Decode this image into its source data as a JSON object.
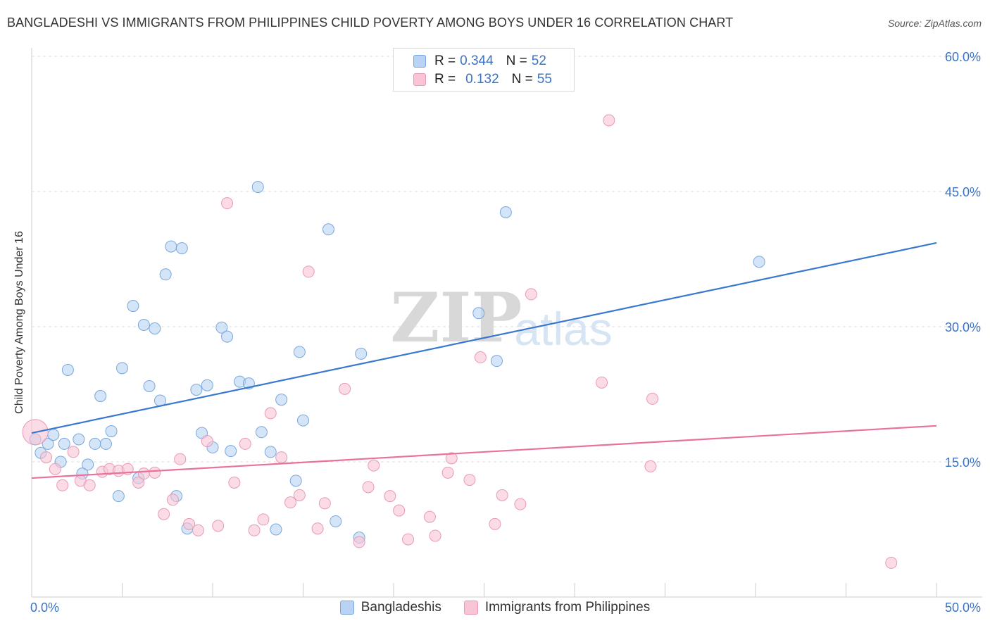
{
  "header": {
    "title": "BANGLADESHI VS IMMIGRANTS FROM PHILIPPINES CHILD POVERTY AMONG BOYS UNDER 16 CORRELATION CHART",
    "source": "Source: ZipAtlas.com"
  },
  "watermark": {
    "zip": "ZIP",
    "atlas": "atlas"
  },
  "legend": {
    "rows": [
      {
        "r_label": "R =",
        "r_value": "0.344",
        "n_label": "N =",
        "n_value": "52"
      },
      {
        "r_label": "R =",
        "r_value": "0.132",
        "n_label": "N =",
        "n_value": "55"
      }
    ]
  },
  "bottom_legend": {
    "items": [
      {
        "label": "Bangladeshis"
      },
      {
        "label": "Immigrants from Philippines"
      }
    ]
  },
  "colors": {
    "blue_fill": "#b8d3f3",
    "blue_stroke": "#7aa6dc",
    "blue_line": "#3a78d0",
    "pink_fill": "#f9c5d6",
    "pink_stroke": "#e89ab4",
    "pink_line": "#e8729b",
    "tick_label": "#3b73c6",
    "grid": "#dddddd"
  },
  "chart_data": {
    "type": "scatter",
    "title": "BANGLADESHI VS IMMIGRANTS FROM PHILIPPINES CHILD POVERTY AMONG BOYS UNDER 16 CORRELATION CHART",
    "xlabel": "",
    "ylabel": "Child Poverty Among Boys Under 16",
    "xlim": [
      0,
      50
    ],
    "ylim": [
      0,
      60
    ],
    "x_tick_labels": [
      "0.0%",
      "50.0%"
    ],
    "y_ticks": [
      15,
      30,
      45,
      60
    ],
    "y_tick_labels": [
      "15.0%",
      "30.0%",
      "45.0%",
      "60.0%"
    ],
    "grid": true,
    "legend_position": "top-center",
    "series": [
      {
        "name": "Bangladeshis",
        "r": 0.344,
        "n": 52,
        "trend": [
          [
            0,
            18.2
          ],
          [
            50,
            39.3
          ]
        ],
        "points": [
          [
            0.2,
            17.5
          ],
          [
            0.5,
            16.0
          ],
          [
            0.9,
            17.0
          ],
          [
            1.2,
            18.0
          ],
          [
            1.6,
            15.0
          ],
          [
            1.8,
            17.0
          ],
          [
            2.0,
            25.2
          ],
          [
            2.6,
            17.5
          ],
          [
            2.8,
            13.7
          ],
          [
            3.1,
            14.7
          ],
          [
            3.5,
            17.0
          ],
          [
            3.8,
            22.3
          ],
          [
            4.1,
            17.0
          ],
          [
            4.4,
            18.4
          ],
          [
            4.8,
            11.2
          ],
          [
            5.0,
            25.4
          ],
          [
            5.6,
            32.3
          ],
          [
            5.9,
            13.2
          ],
          [
            6.2,
            30.2
          ],
          [
            6.5,
            23.4
          ],
          [
            6.8,
            29.8
          ],
          [
            7.1,
            21.8
          ],
          [
            7.4,
            35.8
          ],
          [
            7.7,
            38.9
          ],
          [
            8.0,
            11.2
          ],
          [
            8.3,
            38.7
          ],
          [
            8.6,
            7.6
          ],
          [
            9.1,
            23.0
          ],
          [
            9.4,
            18.2
          ],
          [
            9.7,
            23.5
          ],
          [
            10.0,
            16.6
          ],
          [
            10.5,
            29.9
          ],
          [
            10.8,
            28.9
          ],
          [
            11.0,
            16.2
          ],
          [
            11.5,
            23.9
          ],
          [
            12.0,
            23.7
          ],
          [
            12.5,
            45.5
          ],
          [
            12.7,
            18.3
          ],
          [
            13.2,
            16.1
          ],
          [
            13.5,
            7.5
          ],
          [
            13.8,
            21.9
          ],
          [
            14.6,
            12.9
          ],
          [
            15.0,
            19.6
          ],
          [
            14.8,
            27.2
          ],
          [
            16.4,
            40.8
          ],
          [
            16.8,
            8.4
          ],
          [
            18.1,
            6.6
          ],
          [
            18.2,
            27.0
          ],
          [
            24.7,
            31.5
          ],
          [
            25.7,
            26.2
          ],
          [
            26.2,
            42.7
          ],
          [
            40.2,
            37.2
          ]
        ]
      },
      {
        "name": "Immigrants from Philippines",
        "r": 0.132,
        "n": 55,
        "trend": [
          [
            0,
            13.2
          ],
          [
            50,
            19.0
          ]
        ],
        "points": [
          [
            0.2,
            18.3
          ],
          [
            0.8,
            15.5
          ],
          [
            1.3,
            14.2
          ],
          [
            1.7,
            12.4
          ],
          [
            2.3,
            16.1
          ],
          [
            2.7,
            12.9
          ],
          [
            3.2,
            12.4
          ],
          [
            3.9,
            13.9
          ],
          [
            4.3,
            14.2
          ],
          [
            4.8,
            14.0
          ],
          [
            5.3,
            14.2
          ],
          [
            5.9,
            12.7
          ],
          [
            6.2,
            13.7
          ],
          [
            6.8,
            13.8
          ],
          [
            7.3,
            9.2
          ],
          [
            7.8,
            10.8
          ],
          [
            8.2,
            15.3
          ],
          [
            8.7,
            8.1
          ],
          [
            9.2,
            7.4
          ],
          [
            9.7,
            17.3
          ],
          [
            10.3,
            7.9
          ],
          [
            10.8,
            43.7
          ],
          [
            11.2,
            12.7
          ],
          [
            11.8,
            17.0
          ],
          [
            12.3,
            7.4
          ],
          [
            12.8,
            8.6
          ],
          [
            13.2,
            20.4
          ],
          [
            13.8,
            15.5
          ],
          [
            14.3,
            10.5
          ],
          [
            14.8,
            11.3
          ],
          [
            15.3,
            36.1
          ],
          [
            15.8,
            7.6
          ],
          [
            16.2,
            10.4
          ],
          [
            17.3,
            23.1
          ],
          [
            18.1,
            6.1
          ],
          [
            18.6,
            12.2
          ],
          [
            18.9,
            14.6
          ],
          [
            19.8,
            11.2
          ],
          [
            20.3,
            9.6
          ],
          [
            20.8,
            6.4
          ],
          [
            22.0,
            8.9
          ],
          [
            22.3,
            6.8
          ],
          [
            23.0,
            13.8
          ],
          [
            23.2,
            15.4
          ],
          [
            24.2,
            13.0
          ],
          [
            24.8,
            26.6
          ],
          [
            25.6,
            8.1
          ],
          [
            26.0,
            11.3
          ],
          [
            27.0,
            10.3
          ],
          [
            27.6,
            33.6
          ],
          [
            31.5,
            23.8
          ],
          [
            31.9,
            52.9
          ],
          [
            34.3,
            22.0
          ],
          [
            34.2,
            14.5
          ],
          [
            47.5,
            3.8
          ]
        ]
      }
    ]
  }
}
